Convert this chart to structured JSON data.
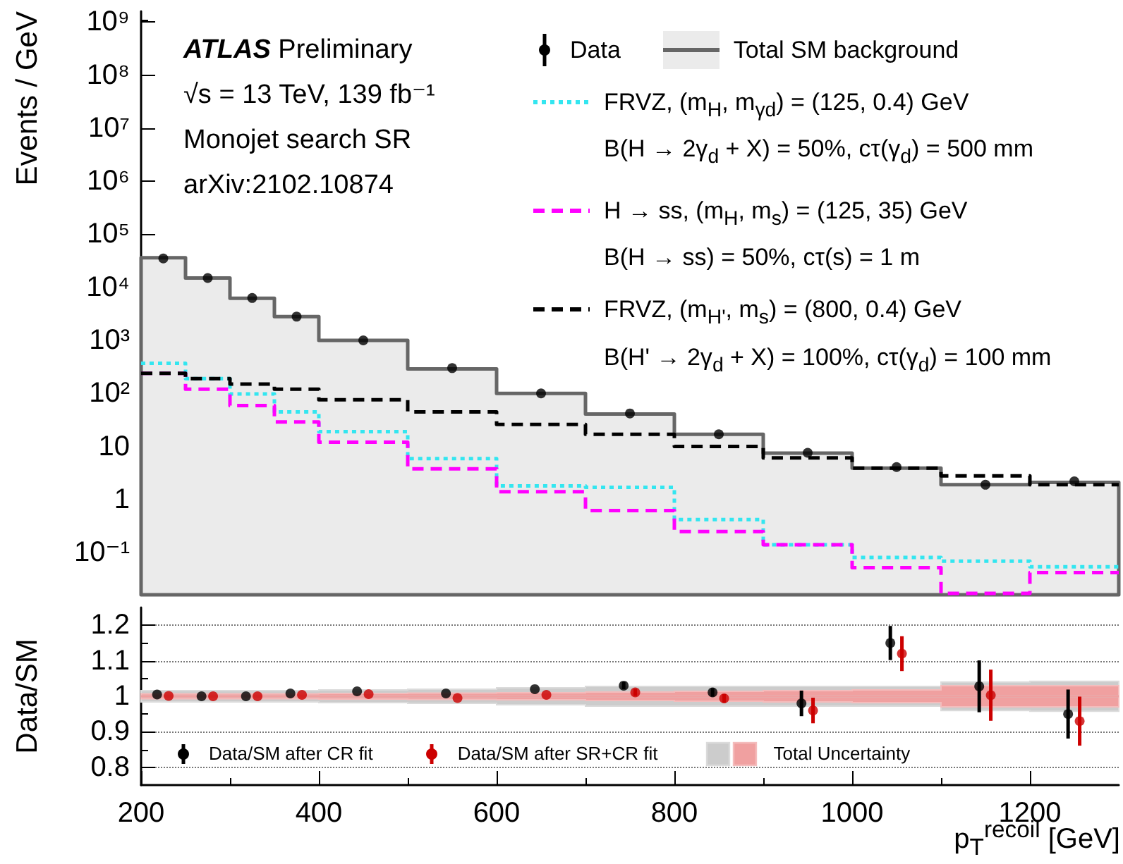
{
  "chart_data": [
    {
      "type": "histogram",
      "bins": [
        200,
        250,
        300,
        350,
        400,
        500,
        600,
        700,
        800,
        900,
        1000,
        1100,
        1200,
        1300
      ],
      "ylabel": "Events / GeV",
      "log": "y",
      "ylim": [
        0.016,
        1600000000.0
      ],
      "yticks": [
        {
          "value": 0.1,
          "label": "10⁻¹"
        },
        1,
        10,
        {
          "value": 100,
          "label": "10²"
        },
        {
          "value": 1000,
          "label": "10³"
        },
        {
          "value": 10000,
          "label": "10⁴"
        },
        {
          "value": 100000,
          "label": "10⁵"
        },
        {
          "value": 1000000,
          "label": "10⁶"
        },
        {
          "value": 10000000,
          "label": "10⁷"
        },
        {
          "value": 100000000,
          "label": "10⁸"
        },
        {
          "value": 1000000000,
          "label": "10⁹"
        }
      ],
      "xlim": [
        200,
        1300
      ],
      "xticks": [
        200,
        400,
        600,
        800,
        1000,
        1200
      ],
      "tick_labels": "y",
      "legend": "top right",
      "annotations": [
        "ATLAS Preliminary",
        "√s = 13 TeV, 139 fb⁻¹",
        "Monojet search SR",
        "arXiv:2102.10874"
      ],
      "series": [
        {
          "name": "Data",
          "type": "scatter",
          "marker": "circle",
          "color": "#000000",
          "x": [
            225,
            275,
            325,
            375,
            450,
            550,
            650,
            750,
            850,
            950,
            1050,
            1150,
            1250
          ],
          "values": [
            35000,
            15000,
            6300,
            2800,
            1000,
            300,
            100,
            42,
            17,
            7.6,
            4.1,
            1.9,
            2.2
          ]
        },
        {
          "name": "Total SM background",
          "type": "area",
          "color": "#666666",
          "x": [
            200,
            250,
            300,
            350,
            400,
            500,
            600,
            700,
            800,
            900,
            1000,
            1100,
            1200,
            1300
          ],
          "values": [
            36000,
            15000,
            6200,
            2800,
            1000,
            290,
            100,
            41,
            17,
            7.5,
            3.9,
            1.9,
            2.1,
            2.1
          ]
        },
        {
          "name": "FRVZ, (m$_{H}$, m$_{γd}$) = (125, 0.4) GeV\nB(H → 2γ$_{d}$ + X) = 50%, cτ(γ$_{d}$) = 500 mm",
          "color": "#33e6f0",
          "line_style": "dotted",
          "values": [
            370,
            190,
            98,
            45,
            19,
            5.9,
            1.8,
            1.7,
            0.42,
            0.14,
            0.081,
            0.069,
            0.054
          ]
        },
        {
          "name": "H → ss, (m$_{H}$, m$_{s}$) = (125, 35) GeV\nB(H → ss) = 50%, cτ(s) = 1 m",
          "color": "#ff00ff",
          "line_style": "dashed",
          "values": [
            240,
            120,
            59,
            29,
            12,
            3.8,
            1.4,
            0.62,
            0.25,
            0.14,
            0.052,
            0.017,
            0.042
          ]
        },
        {
          "name": "FRVZ, (m$_{H'}$, m$_{s}$) = (800, 0.4) GeV\nB(H' → 2γ$_{d}$ + X) = 100%, cτ(γ$_{d}$) = 100 mm",
          "color": "#000000",
          "line_style": "dashed",
          "values": [
            240,
            190,
            150,
            120,
            76,
            45,
            26,
            17,
            10,
            6.1,
            3.9,
            2.8,
            1.9
          ]
        }
      ]
    },
    {
      "type": "scatter",
      "xlabel": "p$_{T}$$^{recoil}$ [GeV]",
      "ylabel": "Data/SM",
      "xlim": [
        200,
        1300
      ],
      "xticks": [
        200,
        400,
        600,
        800,
        1000,
        1200
      ],
      "ylim": [
        0.75,
        1.25
      ],
      "yticks": [
        0.8,
        0.9,
        1,
        1.1,
        1.2
      ],
      "grid": "y",
      "legend": "bottom left",
      "series": [
        {
          "name": "Data/SM after CR fit",
          "marker": "circle",
          "color": "#000000",
          "x": [
            218,
            268,
            318,
            368,
            443,
            543,
            643,
            743,
            843,
            943,
            1043,
            1143,
            1243
          ],
          "values": [
            1.005,
            1.0,
            1.0,
            1.008,
            1.014,
            1.008,
            1.02,
            1.03,
            1.011,
            0.98,
            1.15,
            1.028,
            0.95
          ],
          "errors": [
            null,
            null,
            null,
            null,
            null,
            null,
            null,
            0.01,
            0.012,
            0.036,
            0.048,
            0.073,
            0.069
          ]
        },
        {
          "name": "Data/SM after SR+CR fit",
          "marker": "circle",
          "color": "#cc0000",
          "x": [
            231,
            281,
            331,
            381,
            456,
            556,
            656,
            756,
            856,
            956,
            1056,
            1156,
            1256
          ],
          "values": [
            1.001,
            1.0,
            1.0,
            1.004,
            1.006,
            0.995,
            1.004,
            1.011,
            0.994,
            0.96,
            1.12,
            1.003,
            0.93
          ],
          "errors": [
            null,
            null,
            null,
            null,
            null,
            null,
            null,
            0.01,
            0.012,
            0.036,
            0.049,
            0.072,
            0.069
          ]
        },
        {
          "name": "Total Uncertainty",
          "type": "step",
          "color": "#cccccc",
          "x": [
            200,
            250,
            300,
            350,
            400,
            500,
            600,
            700,
            800,
            900,
            1000,
            1100,
            1200,
            1300
          ],
          "values": [
            1,
            1,
            1,
            1,
            1,
            1,
            1,
            1,
            1,
            1,
            1,
            1,
            1,
            1
          ],
          "lower": [
            0.984,
            0.984,
            0.984,
            0.984,
            0.982,
            0.98,
            0.976,
            0.972,
            0.972,
            0.972,
            0.972,
            0.96,
            0.958,
            0.958
          ],
          "upper": [
            1.016,
            1.016,
            1.016,
            1.016,
            1.018,
            1.02,
            1.024,
            1.028,
            1.028,
            1.028,
            1.028,
            1.04,
            1.042,
            1.042
          ]
        },
        {
          "type": "step",
          "color": "#f0a0a0",
          "x": [
            200,
            250,
            300,
            350,
            400,
            500,
            600,
            700,
            800,
            900,
            1000,
            1100,
            1200,
            1300
          ],
          "values": [
            1,
            1,
            1,
            1,
            1,
            1,
            1,
            1,
            1,
            1,
            1,
            1,
            1,
            1
          ],
          "lower": [
            0.993,
            0.993,
            0.993,
            0.993,
            0.992,
            0.991,
            0.99,
            0.988,
            0.986,
            0.984,
            0.982,
            0.97,
            0.97,
            0.97
          ],
          "upper": [
            1.007,
            1.007,
            1.007,
            1.007,
            1.008,
            1.009,
            1.01,
            1.012,
            1.014,
            1.016,
            1.018,
            1.03,
            1.03,
            1.03
          ]
        }
      ]
    }
  ]
}
